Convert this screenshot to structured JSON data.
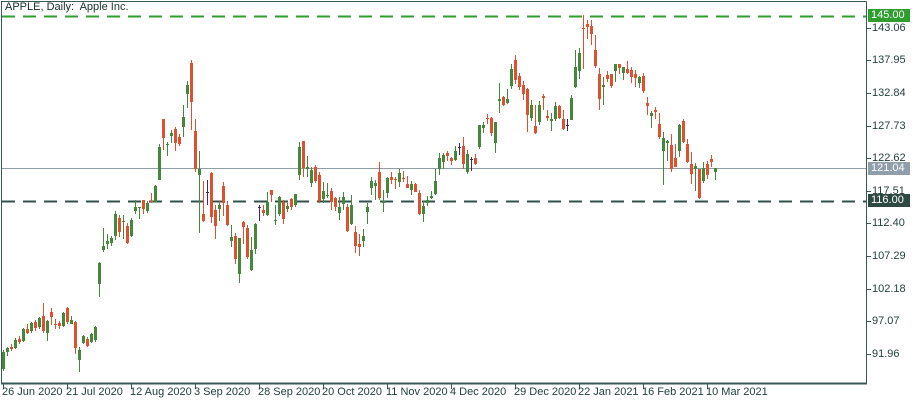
{
  "header": {
    "title": "APPLE, Daily:  Apple Inc."
  },
  "colors": {
    "background": "#ffffff",
    "frame": "#3a5854",
    "text": "#23403d",
    "title_text": "#16302d",
    "bull": "#44883c",
    "bear": "#dd5130",
    "doji": "#3f2a68",
    "current_price_line": "#8f9ea6",
    "level_green_line": "#2f9e2f",
    "level_dark_line": "#31504b",
    "tag_green_bg": "#2f9e2f",
    "tag_gray_bg": "#8f9ea8",
    "tag_dark_bg": "#2e4843",
    "tag_text": "#ffffff"
  },
  "chart_data": {
    "type": "candlestick",
    "symbol": "APPLE",
    "timeframe": "Daily",
    "company": "Apple Inc.",
    "ylim": [
      87.4,
      147.1
    ],
    "grid": false,
    "legend_position": "none",
    "y_ticks": [
      143.06,
      137.95,
      132.84,
      127.73,
      122.62,
      117.51,
      112.4,
      107.29,
      102.18,
      97.07,
      91.96
    ],
    "x_ticks": [
      {
        "label": "26 Jun 2020",
        "index": 0
      },
      {
        "label": "21 Jul 2020",
        "index": 16
      },
      {
        "label": "12 Aug 2020",
        "index": 32
      },
      {
        "label": "3 Sep 2020",
        "index": 48
      },
      {
        "label": "28 Sep 2020",
        "index": 64
      },
      {
        "label": "20 Oct 2020",
        "index": 80
      },
      {
        "label": "11 Nov 2020",
        "index": 96
      },
      {
        "label": "4 Dec 2020",
        "index": 112
      },
      {
        "label": "29 Dec 2020",
        "index": 128
      },
      {
        "label": "22 Jan 2021",
        "index": 144
      },
      {
        "label": "16 Feb 2021",
        "index": 160
      },
      {
        "label": "10 Mar 2021",
        "index": 176
      }
    ],
    "levels": [
      {
        "label": "145.00",
        "value": 145.0,
        "line": "dashed",
        "role": "resistance"
      },
      {
        "label": "121.04",
        "value": 121.04,
        "line": "solid",
        "role": "current-price"
      },
      {
        "label": "116.00",
        "value": 116.0,
        "line": "dashed",
        "role": "support"
      }
    ],
    "ohlc": [
      [
        89.6,
        92.6,
        89.3,
        92.25
      ],
      [
        92.3,
        93.1,
        91.7,
        92.9
      ],
      [
        93.05,
        93.55,
        92.45,
        92.75
      ],
      [
        92.9,
        94.4,
        92.7,
        94.2
      ],
      [
        94.35,
        94.8,
        93.5,
        93.8
      ],
      [
        94.0,
        96.0,
        93.9,
        95.8
      ],
      [
        95.9,
        96.6,
        95.1,
        95.3
      ],
      [
        95.5,
        97.0,
        95.3,
        96.8
      ],
      [
        96.9,
        97.2,
        95.6,
        96.0
      ],
      [
        96.1,
        97.8,
        95.9,
        97.6
      ],
      [
        97.9,
        100.0,
        95.3,
        95.6
      ],
      [
        95.3,
        97.3,
        94.0,
        97.1
      ],
      [
        98.6,
        99.2,
        96.5,
        97.7
      ],
      [
        96.6,
        97.4,
        95.9,
        96.5
      ],
      [
        96.8,
        97.1,
        95.8,
        96.3
      ],
      [
        96.4,
        98.5,
        96.1,
        98.4
      ],
      [
        99.2,
        99.3,
        96.7,
        97.0
      ],
      [
        96.69,
        97.97,
        96.6,
        97.27
      ],
      [
        96.99,
        97.08,
        92.01,
        92.85
      ],
      [
        90.99,
        92.97,
        89.14,
        92.61
      ],
      [
        93.71,
        94.91,
        93.48,
        94.81
      ],
      [
        94.37,
        94.55,
        93.0,
        93.25
      ],
      [
        93.75,
        95.23,
        93.71,
        95.04
      ],
      [
        94.19,
        96.3,
        93.77,
        96.19
      ],
      [
        102.88,
        106.42,
        100.82,
        106.26
      ],
      [
        108.2,
        111.64,
        107.89,
        108.94
      ],
      [
        109.13,
        110.79,
        108.39,
        109.67
      ],
      [
        109.38,
        110.39,
        108.9,
        110.06
      ],
      [
        110.4,
        114.41,
        109.8,
        113.9
      ],
      [
        113.21,
        113.68,
        110.29,
        111.11
      ],
      [
        112.6,
        113.78,
        110.0,
        112.73
      ],
      [
        111.97,
        112.48,
        109.11,
        109.38
      ],
      [
        110.5,
        113.28,
        110.3,
        113.01
      ],
      [
        114.43,
        116.04,
        113.93,
        115.01
      ],
      [
        114.83,
        115.0,
        113.04,
        114.91
      ],
      [
        116.06,
        116.09,
        113.96,
        114.61
      ],
      [
        114.35,
        116.0,
        114.01,
        115.56
      ],
      [
        115.98,
        117.16,
        115.61,
        115.71
      ],
      [
        115.75,
        118.39,
        115.73,
        118.28
      ],
      [
        119.26,
        124.87,
        119.25,
        124.37
      ],
      [
        128.7,
        128.79,
        123.94,
        125.86
      ],
      [
        124.7,
        125.18,
        123.05,
        124.82
      ],
      [
        126.18,
        126.99,
        125.08,
        126.52
      ],
      [
        127.14,
        127.49,
        123.83,
        125.01
      ],
      [
        126.01,
        126.44,
        124.58,
        124.81
      ],
      [
        127.58,
        131.0,
        126.0,
        129.04
      ],
      [
        132.76,
        134.8,
        130.53,
        134.18
      ],
      [
        137.59,
        137.98,
        127.0,
        131.4
      ],
      [
        126.91,
        128.84,
        120.5,
        120.88
      ],
      [
        120.07,
        123.7,
        110.89,
        120.96
      ],
      [
        113.95,
        118.99,
        112.68,
        112.82
      ],
      [
        117.26,
        119.14,
        115.26,
        117.32
      ],
      [
        120.36,
        120.5,
        112.5,
        113.49
      ],
      [
        114.57,
        115.23,
        110.0,
        112.0
      ],
      [
        114.72,
        115.93,
        112.8,
        115.36
      ],
      [
        118.33,
        118.83,
        113.61,
        115.54
      ],
      [
        115.23,
        116.0,
        112.04,
        112.13
      ],
      [
        109.72,
        112.2,
        108.71,
        110.34
      ],
      [
        110.4,
        110.88,
        106.09,
        106.84
      ],
      [
        104.54,
        110.19,
        103.1,
        110.08
      ],
      [
        112.68,
        112.86,
        109.16,
        111.81
      ],
      [
        111.62,
        112.11,
        106.77,
        107.12
      ],
      [
        105.17,
        110.25,
        105.0,
        108.22
      ],
      [
        108.43,
        112.44,
        107.67,
        112.28
      ],
      [
        115.01,
        115.32,
        112.78,
        114.96
      ],
      [
        114.55,
        115.31,
        113.57,
        114.09
      ],
      [
        113.79,
        117.26,
        113.62,
        115.81
      ],
      [
        117.64,
        117.72,
        115.83,
        116.79
      ],
      [
        112.89,
        115.37,
        112.22,
        113.02
      ],
      [
        113.91,
        116.65,
        113.55,
        116.5
      ],
      [
        115.7,
        116.12,
        112.25,
        113.16
      ],
      [
        114.62,
        115.55,
        114.13,
        115.08
      ],
      [
        116.25,
        116.4,
        114.59,
        114.97
      ],
      [
        115.28,
        117.0,
        114.92,
        116.97
      ],
      [
        120.06,
        125.18,
        119.28,
        124.4
      ],
      [
        125.27,
        125.39,
        119.65,
        121.1
      ],
      [
        121.0,
        123.03,
        119.62,
        121.19
      ],
      [
        118.72,
        121.2,
        118.15,
        120.71
      ],
      [
        121.28,
        121.55,
        118.81,
        119.02
      ],
      [
        119.96,
        120.42,
        115.66,
        115.98
      ],
      [
        116.2,
        118.98,
        115.63,
        117.51
      ],
      [
        116.67,
        118.71,
        116.45,
        116.87
      ],
      [
        117.45,
        118.04,
        114.59,
        115.75
      ],
      [
        116.39,
        116.55,
        114.28,
        115.04
      ],
      [
        114.01,
        116.55,
        112.88,
        115.05
      ],
      [
        115.49,
        117.28,
        114.54,
        116.6
      ],
      [
        115.05,
        115.43,
        111.1,
        111.2
      ],
      [
        112.37,
        116.93,
        112.2,
        115.32
      ],
      [
        111.06,
        111.99,
        107.72,
        108.86
      ],
      [
        109.11,
        110.68,
        107.32,
        108.77
      ],
      [
        109.66,
        111.49,
        108.73,
        110.44
      ],
      [
        114.14,
        115.59,
        112.35,
        114.95
      ],
      [
        117.95,
        119.62,
        116.87,
        119.03
      ],
      [
        118.32,
        119.2,
        116.13,
        118.69
      ],
      [
        120.5,
        121.99,
        116.05,
        116.32
      ],
      [
        115.55,
        117.59,
        114.13,
        115.97
      ],
      [
        117.19,
        119.63,
        116.44,
        119.49
      ],
      [
        119.62,
        120.53,
        118.57,
        119.21
      ],
      [
        119.44,
        119.67,
        117.87,
        119.26
      ],
      [
        118.92,
        120.99,
        118.15,
        120.3
      ],
      [
        119.55,
        120.67,
        118.96,
        119.39
      ],
      [
        118.61,
        119.82,
        118.0,
        118.03
      ],
      [
        117.59,
        119.06,
        116.81,
        118.64
      ],
      [
        118.64,
        118.77,
        117.29,
        117.34
      ],
      [
        117.18,
        117.62,
        113.75,
        113.85
      ],
      [
        113.91,
        115.85,
        112.59,
        115.17
      ],
      [
        115.55,
        116.75,
        115.17,
        116.03
      ],
      [
        116.45,
        117.49,
        116.22,
        116.75
      ],
      [
        116.97,
        120.97,
        116.81,
        119.05
      ],
      [
        121.01,
        123.47,
        120.01,
        122.72
      ],
      [
        122.02,
        123.37,
        120.89,
        123.08
      ],
      [
        123.52,
        123.78,
        122.21,
        122.94
      ],
      [
        122.6,
        122.86,
        121.52,
        122.25
      ],
      [
        122.31,
        124.57,
        122.25,
        123.75
      ],
      [
        124.37,
        124.98,
        123.09,
        124.38
      ],
      [
        124.53,
        125.95,
        121.0,
        121.78
      ],
      [
        120.5,
        123.87,
        120.15,
        123.24
      ],
      [
        122.43,
        122.76,
        120.55,
        122.41
      ],
      [
        122.6,
        123.35,
        121.54,
        121.78
      ],
      [
        124.34,
        127.9,
        124.13,
        127.88
      ],
      [
        127.41,
        128.37,
        126.56,
        127.81
      ],
      [
        128.9,
        129.58,
        128.04,
        128.7
      ],
      [
        128.96,
        129.1,
        126.12,
        126.66
      ],
      [
        125.02,
        128.31,
        123.45,
        128.23
      ],
      [
        131.61,
        134.41,
        129.65,
        131.88
      ],
      [
        132.16,
        132.43,
        130.78,
        130.96
      ],
      [
        131.32,
        133.46,
        131.1,
        131.97
      ],
      [
        133.99,
        137.34,
        133.51,
        136.69
      ],
      [
        138.05,
        138.79,
        134.34,
        134.87
      ],
      [
        135.58,
        135.99,
        133.4,
        133.72
      ],
      [
        134.08,
        134.74,
        131.72,
        132.69
      ],
      [
        133.52,
        133.61,
        126.76,
        129.41
      ],
      [
        128.89,
        131.74,
        128.43,
        131.01
      ],
      [
        127.72,
        131.05,
        126.38,
        126.6
      ],
      [
        128.36,
        131.63,
        127.86,
        130.92
      ],
      [
        132.43,
        132.63,
        130.23,
        132.05
      ],
      [
        129.19,
        130.17,
        128.5,
        128.98
      ],
      [
        128.5,
        129.69,
        126.86,
        128.8
      ],
      [
        128.76,
        131.45,
        128.49,
        130.89
      ],
      [
        130.8,
        131.0,
        128.76,
        128.91
      ],
      [
        128.78,
        130.22,
        127.0,
        127.14
      ],
      [
        127.78,
        128.71,
        126.94,
        127.83
      ],
      [
        128.66,
        132.49,
        128.55,
        132.03
      ],
      [
        133.8,
        139.67,
        133.59,
        136.87
      ],
      [
        136.28,
        139.85,
        135.02,
        139.07
      ],
      [
        143.07,
        145.09,
        136.54,
        142.92
      ],
      [
        143.6,
        144.3,
        141.37,
        143.16
      ],
      [
        143.43,
        144.3,
        140.41,
        142.06
      ],
      [
        139.52,
        141.99,
        136.7,
        137.09
      ],
      [
        135.83,
        136.74,
        130.21,
        131.96
      ],
      [
        133.75,
        135.38,
        130.93,
        134.14
      ],
      [
        135.73,
        136.31,
        134.61,
        134.99
      ],
      [
        135.76,
        135.77,
        133.61,
        133.94
      ],
      [
        136.3,
        137.4,
        134.59,
        137.39
      ],
      [
        137.35,
        137.42,
        135.86,
        136.76
      ],
      [
        136.03,
        136.96,
        134.92,
        136.91
      ],
      [
        136.62,
        137.88,
        135.85,
        136.01
      ],
      [
        136.48,
        136.99,
        134.4,
        135.39
      ],
      [
        135.9,
        136.39,
        133.77,
        135.13
      ],
      [
        134.35,
        135.53,
        133.69,
        135.37
      ],
      [
        135.49,
        136.01,
        132.79,
        133.19
      ],
      [
        131.25,
        132.22,
        129.47,
        130.84
      ],
      [
        129.2,
        130.0,
        127.41,
        129.71
      ],
      [
        130.24,
        130.71,
        128.8,
        129.87
      ],
      [
        128.01,
        129.72,
        125.6,
        126.0
      ],
      [
        123.76,
        126.71,
        118.39,
        125.86
      ],
      [
        124.94,
        125.56,
        122.23,
        125.35
      ],
      [
        124.68,
        126.46,
        120.54,
        120.99
      ],
      [
        122.59,
        124.85,
        121.2,
        121.26
      ],
      [
        123.75,
        127.93,
        122.79,
        127.79
      ],
      [
        128.41,
        128.72,
        125.01,
        125.12
      ],
      [
        124.81,
        125.71,
        121.84,
        122.06
      ],
      [
        121.75,
        123.6,
        118.62,
        120.13
      ],
      [
        120.98,
        121.94,
        117.57,
        121.42
      ],
      [
        120.93,
        121.0,
        116.21,
        116.36
      ],
      [
        119.03,
        122.06,
        118.79,
        121.09
      ],
      [
        121.69,
        122.17,
        119.45,
        119.98
      ],
      [
        122.54,
        123.21,
        121.26,
        121.96
      ],
      [
        120.4,
        121.17,
        119.16,
        121.03
      ]
    ]
  }
}
